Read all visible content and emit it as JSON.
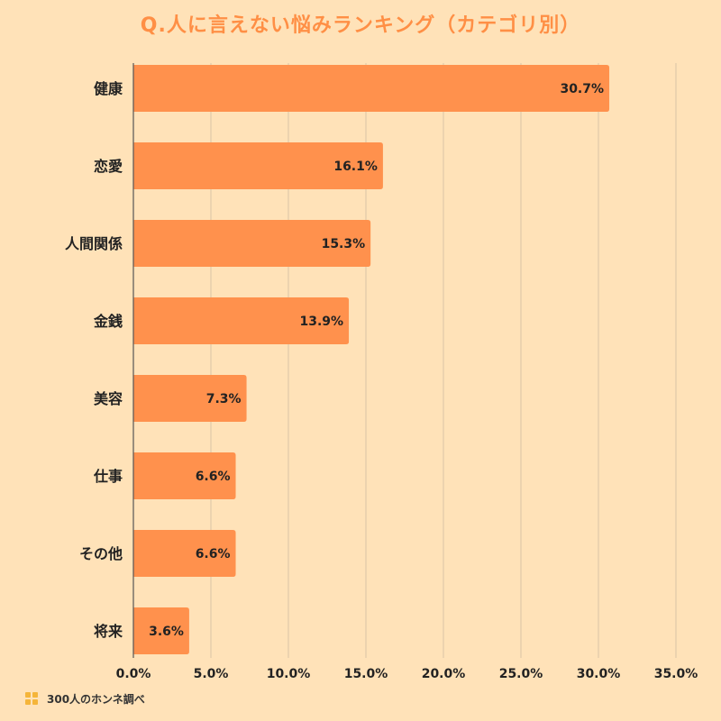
{
  "title": "Q.人に言えない悩みランキング（カテゴリ別）",
  "footer": {
    "text": "300人のホンネ調べ",
    "icon": "logo-icon"
  },
  "colors": {
    "background": "#FFE2B8",
    "bar": "#FF914D",
    "title": "#FF8F45",
    "grid": "#D8C4A6",
    "axis": "#555555",
    "text": "#222222"
  },
  "chart_data": {
    "type": "bar",
    "orientation": "horizontal",
    "title": "Q.人に言えない悩みランキング（カテゴリ別）",
    "xlabel": "",
    "ylabel": "",
    "categories": [
      "健康",
      "恋愛",
      "人間関係",
      "金銭",
      "美容",
      "仕事",
      "その他",
      "将来"
    ],
    "values": [
      30.7,
      16.1,
      15.3,
      13.9,
      7.3,
      6.6,
      6.6,
      3.6
    ],
    "value_labels": [
      "30.7%",
      "16.1%",
      "15.3%",
      "13.9%",
      "7.3%",
      "6.6%",
      "6.6%",
      "3.6%"
    ],
    "xlim": [
      0,
      35
    ],
    "ticks": [
      0,
      5,
      10,
      15,
      20,
      25,
      30,
      35
    ],
    "tick_labels": [
      "0.0%",
      "5.0%",
      "10.0%",
      "15.0%",
      "20.0%",
      "25.0%",
      "30.0%",
      "35.0%"
    ],
    "grid": true,
    "legend": "none"
  }
}
